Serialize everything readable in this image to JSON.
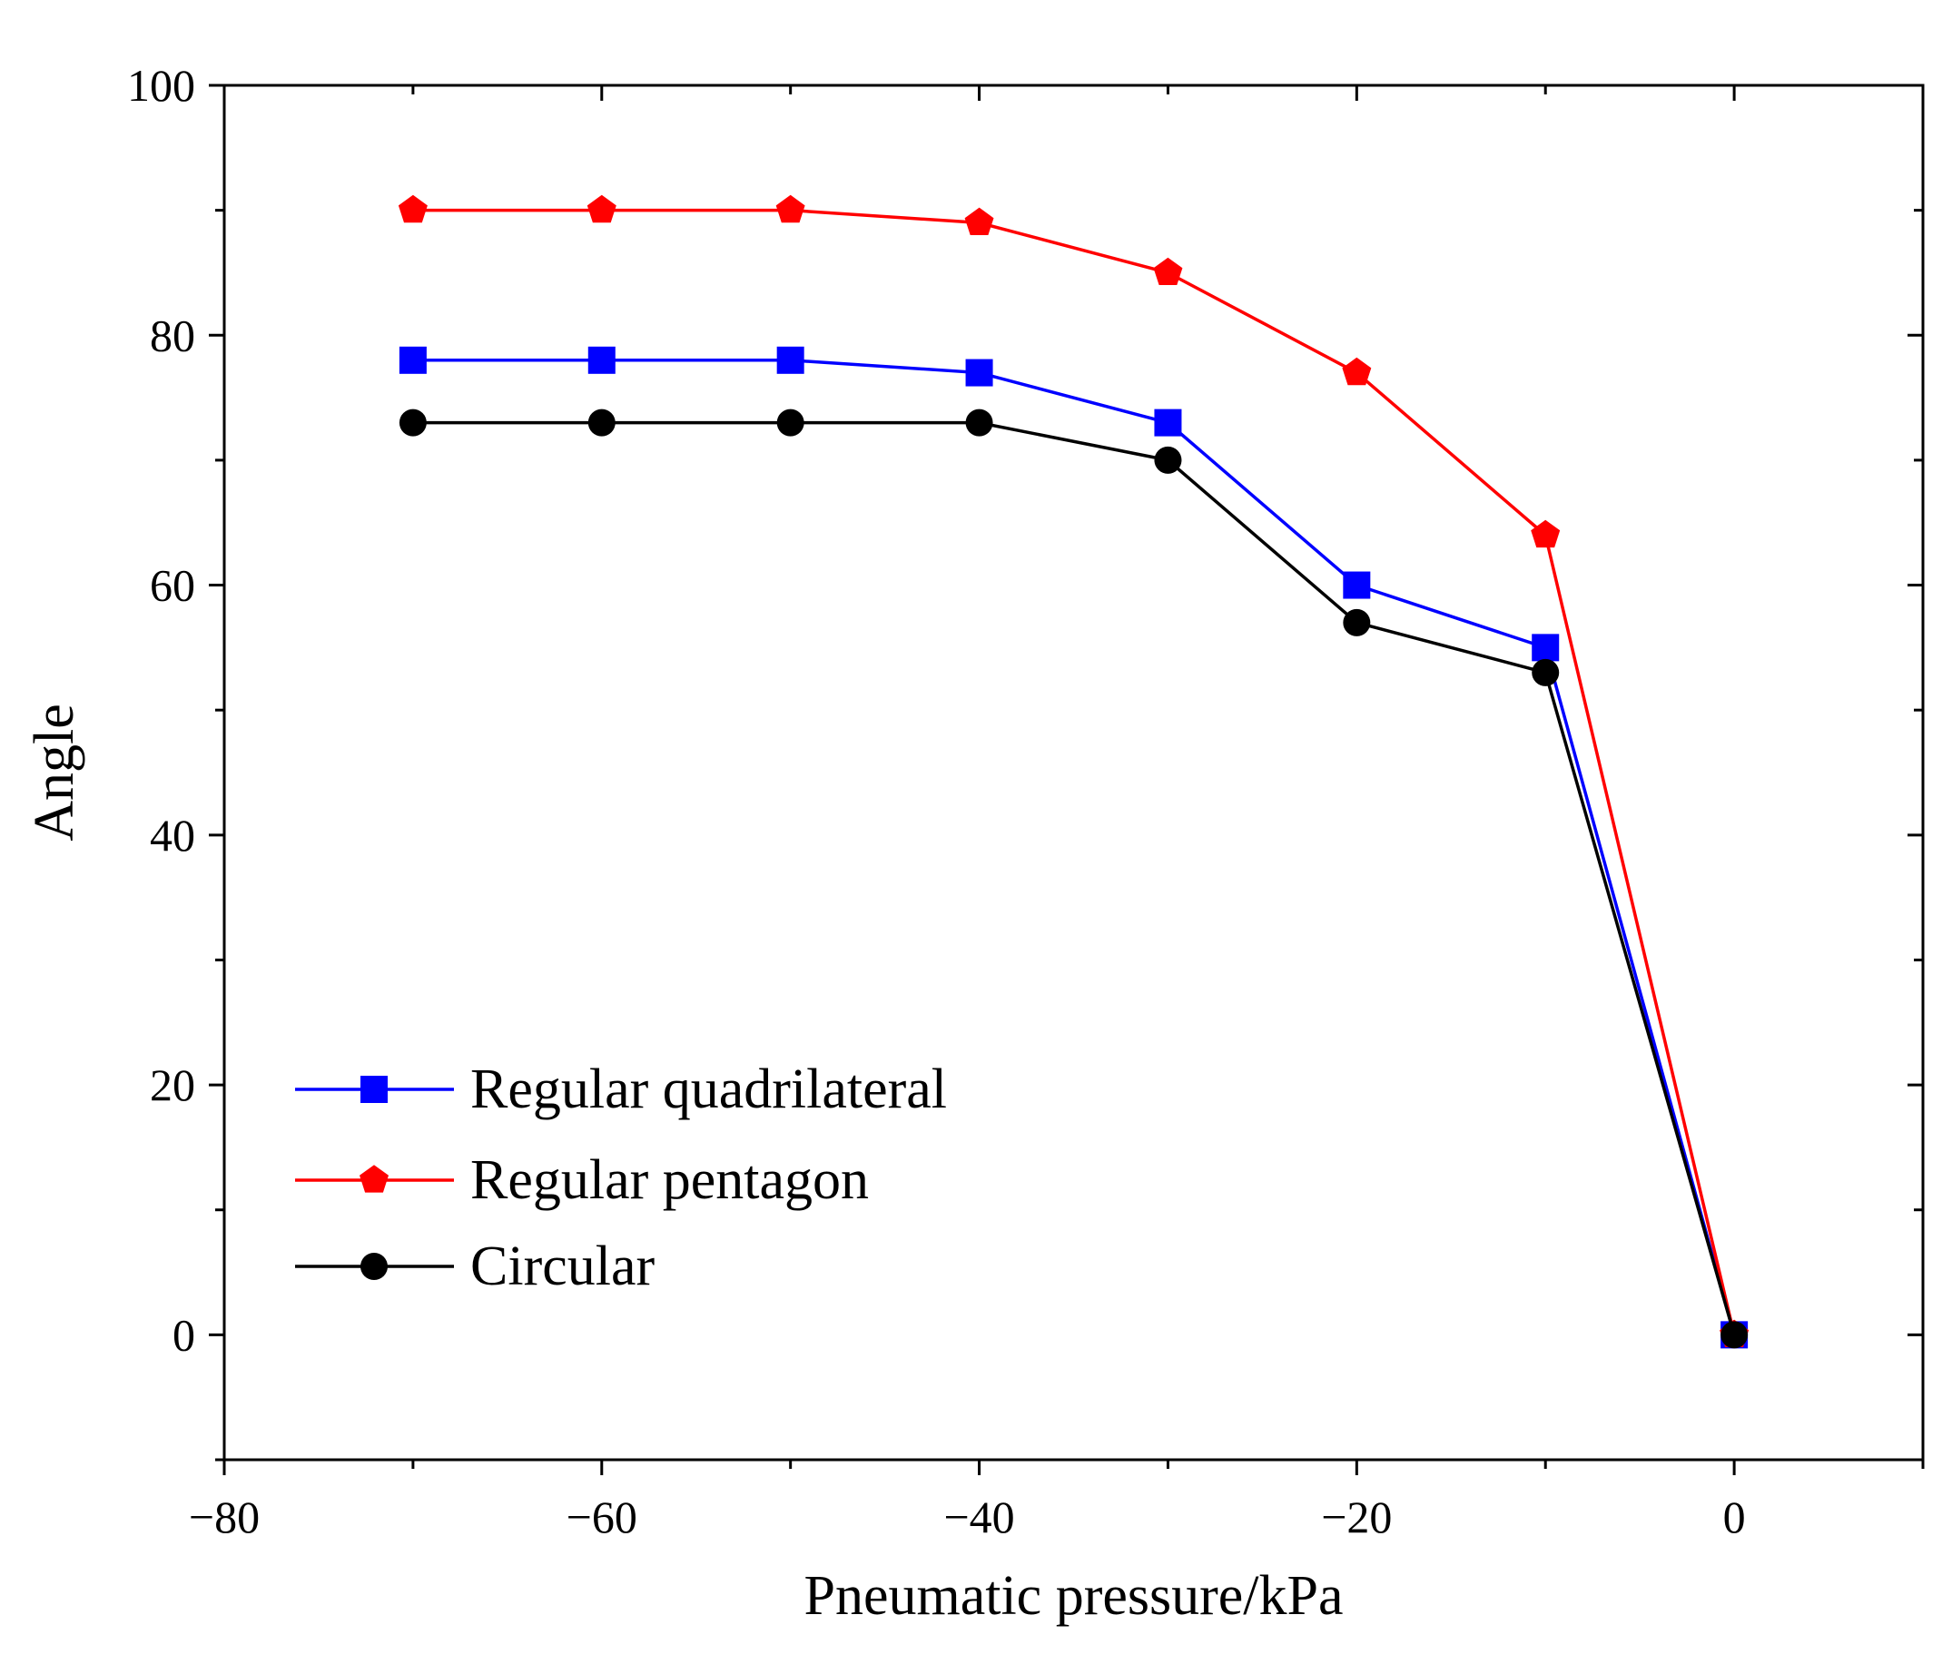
{
  "chart_data": {
    "type": "line",
    "title": "",
    "xlabel": "Pneumatic pressure/kPa",
    "ylabel": "Angle",
    "xlim": [
      -80,
      10
    ],
    "ylim": [
      -10,
      100
    ],
    "xticks": [
      -80,
      -60,
      -40,
      -20,
      0
    ],
    "yticks": [
      0,
      20,
      40,
      60,
      80,
      100
    ],
    "x_tick_labels": [
      "−80",
      "−60",
      "−40",
      "−20",
      "0"
    ],
    "y_tick_labels": [
      "0",
      "20",
      "40",
      "60",
      "80",
      "100"
    ],
    "x": [
      -70,
      -60,
      -50,
      -40,
      -30,
      -20,
      -10,
      0
    ],
    "series": [
      {
        "name": "Regular quadrilateral",
        "color": "#0000ff",
        "marker": "square",
        "values": [
          78,
          78,
          78,
          77,
          73,
          60,
          55,
          0
        ]
      },
      {
        "name": "Regular pentagon",
        "color": "#ff0000",
        "marker": "pentagon",
        "values": [
          90,
          90,
          90,
          89,
          85,
          77,
          64,
          0
        ]
      },
      {
        "name": "Circular",
        "color": "#000000",
        "marker": "circle",
        "values": [
          73,
          73,
          73,
          73,
          70,
          57,
          53,
          0
        ]
      }
    ],
    "legend": "lower-left",
    "grid": false
  }
}
